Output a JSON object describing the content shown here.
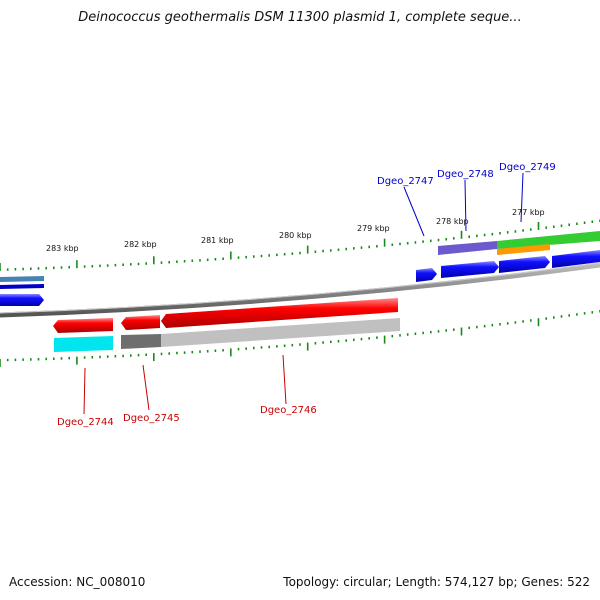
{
  "title": "Deinococcus geothermalis DSM 11300 plasmid 1, complete seque...",
  "footer": {
    "accession": "Accession: NC_008010",
    "stats": "Topology: circular; Length: 574,127 bp; Genes: 522"
  },
  "ruler": {
    "labels": [
      "277 kbp",
      "278 kbp",
      "279 kbp",
      "280 kbp",
      "281 kbp",
      "282 kbp",
      "283 kbp"
    ]
  },
  "genes": {
    "forward": [
      "Dgeo_2747",
      "Dgeo_2748",
      "Dgeo_2749"
    ],
    "reverse": [
      "Dgeo_2744",
      "Dgeo_2745",
      "Dgeo_2746"
    ]
  },
  "colors": {
    "forward_label": "#0000cc",
    "reverse_label": "#cc0000",
    "forward_gene": "#0000ee",
    "reverse_gene": "#ee0000",
    "ticks": "#1a8a1a",
    "backbone": "#777777"
  }
}
